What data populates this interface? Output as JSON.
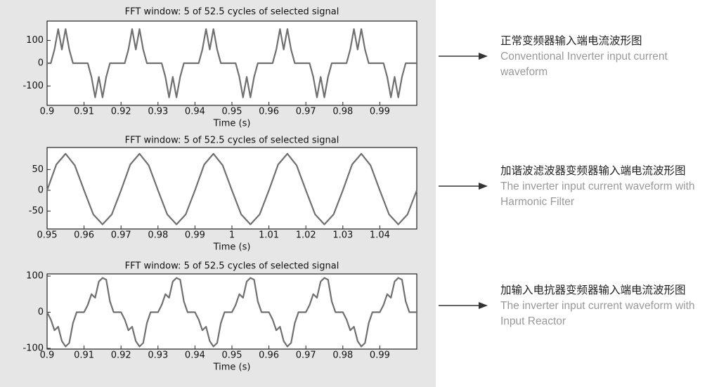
{
  "chart_data": [
    {
      "type": "line",
      "title": "FFT window: 5 of 52.5 cycles of selected signal",
      "xlabel": "Time (s)",
      "caption_cn": "正常变频器输入端电流波形图",
      "caption_en": "Conventional Inverter input current waveform",
      "color": "#707070",
      "xlim": [
        0.9,
        1.0
      ],
      "ylim": [
        -185,
        185
      ],
      "xticks": [
        0.9,
        0.91,
        0.92,
        0.93,
        0.94,
        0.95,
        0.96,
        0.97,
        0.98,
        0.99
      ],
      "yticks": [
        -100,
        0,
        100
      ],
      "x": [
        0.9,
        0.901,
        0.902,
        0.903,
        0.904,
        0.905,
        0.906,
        0.907,
        0.908,
        0.909,
        0.91,
        0.911,
        0.912,
        0.913,
        0.914,
        0.915,
        0.916,
        0.917,
        0.918,
        0.919,
        0.92,
        0.921,
        0.922,
        0.923,
        0.924,
        0.925,
        0.926,
        0.927,
        0.928,
        0.929,
        0.93,
        0.931,
        0.932,
        0.933,
        0.934,
        0.935,
        0.936,
        0.937,
        0.938,
        0.939,
        0.94,
        0.941,
        0.942,
        0.943,
        0.944,
        0.945,
        0.946,
        0.947,
        0.948,
        0.949,
        0.95,
        0.951,
        0.952,
        0.953,
        0.954,
        0.955,
        0.956,
        0.957,
        0.958,
        0.959,
        0.96,
        0.961,
        0.962,
        0.963,
        0.964,
        0.965,
        0.966,
        0.967,
        0.968,
        0.969,
        0.97,
        0.971,
        0.972,
        0.973,
        0.974,
        0.975,
        0.976,
        0.977,
        0.978,
        0.979,
        0.98,
        0.981,
        0.982,
        0.983,
        0.984,
        0.985,
        0.986,
        0.987,
        0.988,
        0.989,
        0.99,
        0.991,
        0.992,
        0.993,
        0.994,
        0.995,
        0.996,
        0.997,
        0.998,
        0.999,
        1.0
      ],
      "values": [
        0,
        0,
        60,
        150,
        60,
        150,
        60,
        0,
        0,
        0,
        0,
        0,
        -60,
        -150,
        -60,
        -150,
        -60,
        0,
        0,
        0,
        0,
        0,
        60,
        150,
        60,
        150,
        60,
        0,
        0,
        0,
        0,
        0,
        -60,
        -150,
        -60,
        -150,
        -60,
        0,
        0,
        0,
        0,
        0,
        60,
        150,
        60,
        150,
        60,
        0,
        0,
        0,
        0,
        0,
        -60,
        -150,
        -60,
        -150,
        -60,
        0,
        0,
        0,
        0,
        0,
        60,
        150,
        60,
        150,
        60,
        0,
        0,
        0,
        0,
        0,
        -60,
        -150,
        -60,
        -150,
        -60,
        0,
        0,
        0,
        0,
        0,
        60,
        150,
        60,
        150,
        60,
        0,
        0,
        0,
        0,
        0,
        -60,
        -150,
        -60,
        -150,
        -60,
        0,
        0,
        0,
        0
      ]
    },
    {
      "type": "line",
      "title": "FFT window: 5 of 52.5 cycles of selected signal",
      "xlabel": "Time (s)",
      "caption_cn": "加谐波滤波器变频器输入端电流波形图",
      "caption_en": "The inverter input current waveform with Harmonic Filter",
      "color": "#707070",
      "xlim": [
        0.95,
        1.05
      ],
      "ylim": [
        -93,
        103
      ],
      "xticks": [
        0.95,
        0.96,
        0.97,
        0.98,
        0.99,
        1,
        1.01,
        1.02,
        1.03,
        1.04
      ],
      "yticks": [
        -50,
        0,
        50
      ],
      "x": [
        0.95,
        0.9525,
        0.955,
        0.9575,
        0.96,
        0.9625,
        0.965,
        0.9675,
        0.97,
        0.9725,
        0.975,
        0.9775,
        0.98,
        0.9825,
        0.985,
        0.9875,
        0.99,
        0.9925,
        0.995,
        0.9975,
        1.0,
        1.0025,
        1.005,
        1.0075,
        1.01,
        1.0125,
        1.015,
        1.0175,
        1.02,
        1.0225,
        1.025,
        1.0275,
        1.03,
        1.0325,
        1.035,
        1.0375,
        1.04,
        1.0425,
        1.045,
        1.0475,
        1.05
      ],
      "values": [
        0,
        62,
        88,
        60,
        0,
        -58,
        -82,
        -58,
        0,
        62,
        88,
        60,
        0,
        -58,
        -82,
        -58,
        0,
        62,
        88,
        60,
        0,
        -58,
        -82,
        -58,
        0,
        62,
        88,
        60,
        0,
        -58,
        -82,
        -58,
        0,
        62,
        88,
        60,
        0,
        -58,
        -82,
        -58,
        0
      ]
    },
    {
      "type": "line",
      "title": "FFT window: 5 of 52.5 cycles of selected signal",
      "xlabel": "Time (s)",
      "caption_cn": "加输入电抗器变频器输入端电流波形图",
      "caption_en": "The inverter input current waveform with Input Reactor",
      "color": "#707070",
      "xlim": [
        0.9,
        1.0
      ],
      "ylim": [
        -102,
        106
      ],
      "xticks": [
        0.9,
        0.91,
        0.92,
        0.93,
        0.94,
        0.95,
        0.96,
        0.97,
        0.98,
        0.99
      ],
      "yticks": [
        -100,
        0,
        100
      ],
      "x": [
        0.9,
        0.901,
        0.902,
        0.903,
        0.904,
        0.905,
        0.906,
        0.907,
        0.908,
        0.909,
        0.91,
        0.911,
        0.912,
        0.913,
        0.914,
        0.915,
        0.916,
        0.917,
        0.918,
        0.919,
        0.92,
        0.921,
        0.922,
        0.923,
        0.924,
        0.925,
        0.926,
        0.927,
        0.928,
        0.929,
        0.93,
        0.931,
        0.932,
        0.933,
        0.934,
        0.935,
        0.936,
        0.937,
        0.938,
        0.939,
        0.94,
        0.941,
        0.942,
        0.943,
        0.944,
        0.945,
        0.946,
        0.947,
        0.948,
        0.949,
        0.95,
        0.951,
        0.952,
        0.953,
        0.954,
        0.955,
        0.956,
        0.957,
        0.958,
        0.959,
        0.96,
        0.961,
        0.962,
        0.963,
        0.964,
        0.965,
        0.966,
        0.967,
        0.968,
        0.969,
        0.97,
        0.971,
        0.972,
        0.973,
        0.974,
        0.975,
        0.976,
        0.977,
        0.978,
        0.979,
        0.98,
        0.981,
        0.982,
        0.983,
        0.984,
        0.985,
        0.986,
        0.987,
        0.988,
        0.989,
        0.99,
        0.991,
        0.992,
        0.993,
        0.994,
        0.995,
        0.996,
        0.997,
        0.998,
        0.999,
        1.0
      ],
      "values": [
        0,
        -20,
        -50,
        -40,
        -80,
        -95,
        -85,
        -30,
        0,
        0,
        0,
        20,
        50,
        40,
        85,
        95,
        90,
        30,
        0,
        0,
        0,
        -20,
        -50,
        -40,
        -80,
        -95,
        -85,
        -30,
        0,
        0,
        0,
        20,
        50,
        40,
        85,
        95,
        90,
        30,
        0,
        0,
        0,
        -20,
        -50,
        -40,
        -80,
        -95,
        -85,
        -30,
        0,
        0,
        0,
        20,
        50,
        40,
        85,
        95,
        90,
        30,
        0,
        0,
        0,
        -20,
        -50,
        -40,
        -80,
        -95,
        -85,
        -30,
        0,
        0,
        0,
        20,
        50,
        40,
        85,
        95,
        90,
        30,
        0,
        0,
        0,
        -20,
        -50,
        -40,
        -80,
        -95,
        -85,
        -30,
        0,
        0,
        0,
        20,
        50,
        40,
        85,
        95,
        90,
        30,
        0,
        0,
        0
      ]
    }
  ]
}
